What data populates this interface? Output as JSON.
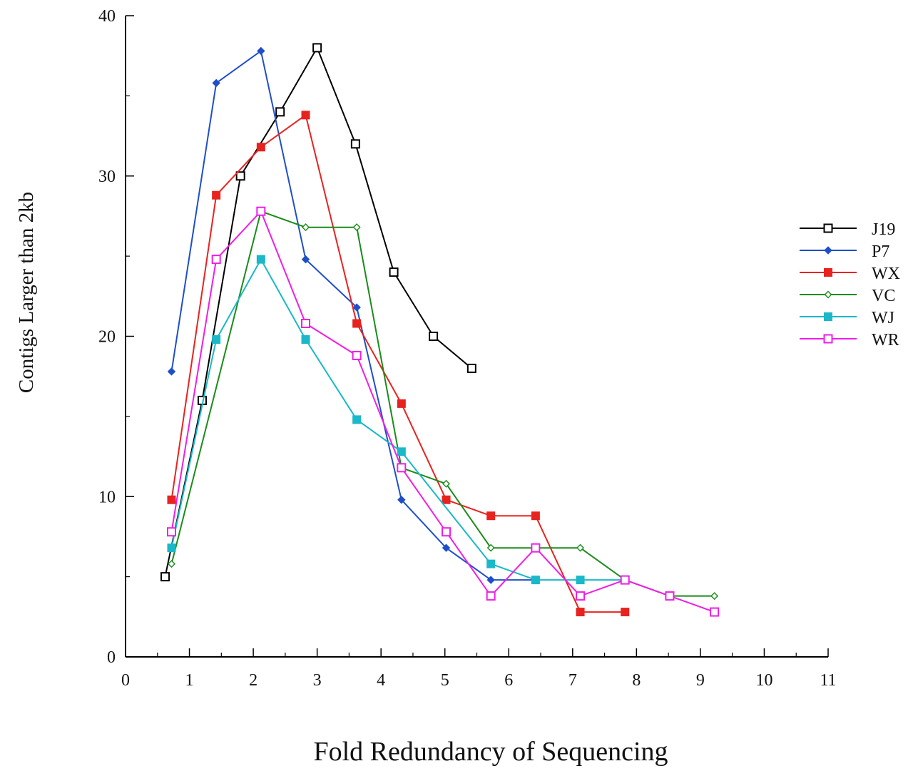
{
  "chart_data": {
    "type": "line",
    "title": "",
    "xlabel": "Fold Redundancy of Sequencing",
    "ylabel": "Contigs Larger than 2kb",
    "xlim": [
      0,
      11
    ],
    "ylim": [
      0,
      40
    ],
    "xticks": [
      "0",
      "1",
      "2",
      "3",
      "4",
      "5",
      "6",
      "7",
      "8",
      "9",
      "10",
      "11"
    ],
    "yticks": [
      "0",
      "10",
      "20",
      "30",
      "40"
    ],
    "grid": false,
    "legend_position": "right",
    "series": [
      {
        "name": "J19",
        "color": "#000000",
        "marker": "square-open",
        "x": [
          0.62,
          1.2,
          1.8,
          2.42,
          3.0,
          3.6,
          4.2,
          4.82,
          5.42
        ],
        "y": [
          5,
          16,
          30,
          34,
          38,
          32,
          24,
          20,
          18
        ]
      },
      {
        "name": "P7",
        "color": "#1f4fc8",
        "marker": "diamond-filled",
        "x": [
          0.72,
          1.42,
          2.12,
          2.82,
          3.62,
          4.32,
          5.02,
          5.72,
          6.42
        ],
        "y": [
          17.8,
          35.8,
          37.8,
          24.8,
          21.8,
          9.8,
          6.8,
          4.8,
          4.8
        ]
      },
      {
        "name": "WX",
        "color": "#e8231f",
        "marker": "square-filled",
        "x": [
          0.72,
          1.42,
          2.12,
          2.82,
          3.62,
          4.32,
          5.02,
          5.72,
          6.42,
          7.12,
          7.82
        ],
        "y": [
          9.8,
          28.8,
          31.8,
          33.8,
          20.8,
          15.8,
          9.8,
          8.8,
          8.8,
          2.8,
          2.8
        ]
      },
      {
        "name": "VC",
        "color": "#1a8c1a",
        "marker": "diamond-open",
        "x": [
          0.72,
          2.12,
          2.82,
          3.62,
          4.32,
          5.02,
          5.72,
          7.12,
          7.82,
          8.52,
          9.22
        ],
        "y": [
          5.8,
          27.8,
          26.8,
          26.8,
          11.8,
          10.8,
          6.8,
          6.8,
          4.8,
          3.8,
          3.8
        ]
      },
      {
        "name": "WJ",
        "color": "#1ab8c8",
        "marker": "square-filled",
        "x": [
          0.72,
          1.42,
          2.12,
          2.82,
          3.62,
          4.32,
          5.72,
          6.42,
          7.12,
          7.82
        ],
        "y": [
          6.8,
          19.8,
          24.8,
          19.8,
          14.8,
          12.8,
          5.8,
          4.8,
          4.8,
          4.8
        ]
      },
      {
        "name": "WR",
        "color": "#f01ee6",
        "marker": "square-open",
        "x": [
          0.72,
          1.42,
          2.12,
          2.82,
          3.62,
          4.32,
          5.02,
          5.72,
          6.42,
          7.12,
          7.82,
          8.52,
          9.22
        ],
        "y": [
          7.8,
          24.8,
          27.8,
          20.8,
          18.8,
          11.8,
          7.8,
          3.8,
          6.8,
          3.8,
          4.8,
          3.8,
          2.8
        ]
      }
    ]
  }
}
